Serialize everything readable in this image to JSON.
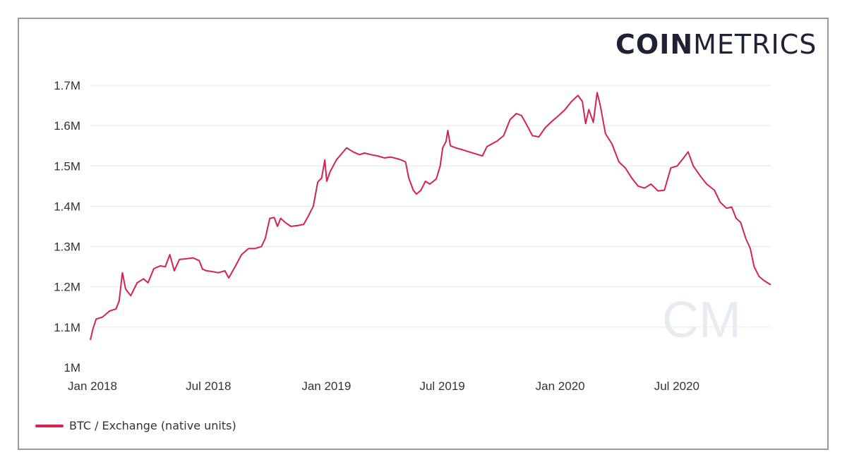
{
  "brand": {
    "bold": "COIN",
    "light": "METRICS",
    "watermark": "CM"
  },
  "colors": {
    "series": "#d6224f",
    "grid": "#e6e6e6",
    "text": "#333333",
    "brand": "#1e2234",
    "watermark": "#e8ebf2"
  },
  "chart_data": {
    "type": "line",
    "title": "",
    "xlabel": "",
    "ylabel": "",
    "ylim": [
      1000000,
      1700000
    ],
    "xlim": [
      "2018-01-01",
      "2020-11-28"
    ],
    "y_ticks": [
      {
        "value": 1000000,
        "label": "1M"
      },
      {
        "value": 1100000,
        "label": "1.1M"
      },
      {
        "value": 1200000,
        "label": "1.2M"
      },
      {
        "value": 1300000,
        "label": "1.3M"
      },
      {
        "value": 1400000,
        "label": "1.4M"
      },
      {
        "value": 1500000,
        "label": "1.5M"
      },
      {
        "value": 1600000,
        "label": "1.6M"
      },
      {
        "value": 1700000,
        "label": "1.7M"
      }
    ],
    "x_ticks": [
      {
        "date": "2018-01-01",
        "label": "Jan 2018"
      },
      {
        "date": "2018-07-01",
        "label": "Jul 2018"
      },
      {
        "date": "2019-01-01",
        "label": "Jan 2019"
      },
      {
        "date": "2019-07-01",
        "label": "Jul 2019"
      },
      {
        "date": "2020-01-01",
        "label": "Jan 2020"
      },
      {
        "date": "2020-07-01",
        "label": "Jul 2020"
      }
    ],
    "grid": true,
    "legend_position": "bottom-left",
    "series": [
      {
        "name": "BTC / Exchange (native units)",
        "points": [
          [
            "2018-01-01",
            1068000
          ],
          [
            "2018-01-05",
            1095000
          ],
          [
            "2018-01-10",
            1120000
          ],
          [
            "2018-01-20",
            1125000
          ],
          [
            "2018-01-31",
            1140000
          ],
          [
            "2018-02-10",
            1145000
          ],
          [
            "2018-02-15",
            1165000
          ],
          [
            "2018-02-20",
            1235000
          ],
          [
            "2018-02-25",
            1195000
          ],
          [
            "2018-03-05",
            1178000
          ],
          [
            "2018-03-15",
            1210000
          ],
          [
            "2018-03-25",
            1220000
          ],
          [
            "2018-04-01",
            1210000
          ],
          [
            "2018-04-10",
            1245000
          ],
          [
            "2018-04-20",
            1252000
          ],
          [
            "2018-04-28",
            1250000
          ],
          [
            "2018-05-05",
            1280000
          ],
          [
            "2018-05-12",
            1240000
          ],
          [
            "2018-05-20",
            1268000
          ],
          [
            "2018-06-01",
            1270000
          ],
          [
            "2018-06-10",
            1272000
          ],
          [
            "2018-06-20",
            1265000
          ],
          [
            "2018-06-25",
            1244000
          ],
          [
            "2018-07-01",
            1240000
          ],
          [
            "2018-07-10",
            1238000
          ],
          [
            "2018-07-20",
            1235000
          ],
          [
            "2018-07-30",
            1240000
          ],
          [
            "2018-08-05",
            1222000
          ],
          [
            "2018-08-15",
            1250000
          ],
          [
            "2018-08-25",
            1280000
          ],
          [
            "2018-09-05",
            1295000
          ],
          [
            "2018-09-15",
            1295000
          ],
          [
            "2018-09-25",
            1300000
          ],
          [
            "2018-10-01",
            1320000
          ],
          [
            "2018-10-08",
            1370000
          ],
          [
            "2018-10-15",
            1372000
          ],
          [
            "2018-10-20",
            1350000
          ],
          [
            "2018-10-25",
            1370000
          ],
          [
            "2018-11-01",
            1360000
          ],
          [
            "2018-11-10",
            1350000
          ],
          [
            "2018-11-20",
            1352000
          ],
          [
            "2018-11-30",
            1355000
          ],
          [
            "2018-12-07",
            1375000
          ],
          [
            "2018-12-15",
            1400000
          ],
          [
            "2018-12-22",
            1460000
          ],
          [
            "2018-12-28",
            1470000
          ],
          [
            "2019-01-02",
            1515000
          ],
          [
            "2019-01-05",
            1462000
          ],
          [
            "2019-01-10",
            1485000
          ],
          [
            "2019-01-20",
            1515000
          ],
          [
            "2019-01-28",
            1530000
          ],
          [
            "2019-02-05",
            1545000
          ],
          [
            "2019-02-15",
            1535000
          ],
          [
            "2019-02-25",
            1528000
          ],
          [
            "2019-03-05",
            1532000
          ],
          [
            "2019-03-15",
            1528000
          ],
          [
            "2019-03-25",
            1525000
          ],
          [
            "2019-04-05",
            1520000
          ],
          [
            "2019-04-15",
            1522000
          ],
          [
            "2019-04-25",
            1518000
          ],
          [
            "2019-05-01",
            1515000
          ],
          [
            "2019-05-08",
            1510000
          ],
          [
            "2019-05-13",
            1470000
          ],
          [
            "2019-05-20",
            1440000
          ],
          [
            "2019-05-25",
            1430000
          ],
          [
            "2019-06-01",
            1440000
          ],
          [
            "2019-06-08",
            1462000
          ],
          [
            "2019-06-15",
            1455000
          ],
          [
            "2019-06-25",
            1468000
          ],
          [
            "2019-07-01",
            1500000
          ],
          [
            "2019-07-05",
            1545000
          ],
          [
            "2019-07-10",
            1560000
          ],
          [
            "2019-07-13",
            1588000
          ],
          [
            "2019-07-17",
            1550000
          ],
          [
            "2019-07-25",
            1545000
          ],
          [
            "2019-08-05",
            1540000
          ],
          [
            "2019-08-15",
            1535000
          ],
          [
            "2019-08-25",
            1530000
          ],
          [
            "2019-09-05",
            1525000
          ],
          [
            "2019-09-12",
            1548000
          ],
          [
            "2019-09-20",
            1555000
          ],
          [
            "2019-09-28",
            1562000
          ],
          [
            "2019-10-08",
            1575000
          ],
          [
            "2019-10-18",
            1615000
          ],
          [
            "2019-10-28",
            1630000
          ],
          [
            "2019-11-05",
            1625000
          ],
          [
            "2019-11-12",
            1605000
          ],
          [
            "2019-11-22",
            1575000
          ],
          [
            "2019-12-02",
            1572000
          ],
          [
            "2019-12-12",
            1595000
          ],
          [
            "2019-12-22",
            1610000
          ],
          [
            "2020-01-02",
            1625000
          ],
          [
            "2020-01-12",
            1640000
          ],
          [
            "2020-01-22",
            1660000
          ],
          [
            "2020-02-01",
            1675000
          ],
          [
            "2020-02-08",
            1660000
          ],
          [
            "2020-02-13",
            1605000
          ],
          [
            "2020-02-18",
            1640000
          ],
          [
            "2020-02-25",
            1608000
          ],
          [
            "2020-03-02",
            1682000
          ],
          [
            "2020-03-07",
            1650000
          ],
          [
            "2020-03-15",
            1580000
          ],
          [
            "2020-03-25",
            1555000
          ],
          [
            "2020-04-05",
            1510000
          ],
          [
            "2020-04-15",
            1495000
          ],
          [
            "2020-04-25",
            1470000
          ],
          [
            "2020-05-05",
            1450000
          ],
          [
            "2020-05-15",
            1445000
          ],
          [
            "2020-05-25",
            1455000
          ],
          [
            "2020-06-05",
            1438000
          ],
          [
            "2020-06-15",
            1440000
          ],
          [
            "2020-06-25",
            1495000
          ],
          [
            "2020-07-05",
            1500000
          ],
          [
            "2020-07-15",
            1520000
          ],
          [
            "2020-07-22",
            1535000
          ],
          [
            "2020-07-30",
            1500000
          ],
          [
            "2020-08-10",
            1475000
          ],
          [
            "2020-08-20",
            1455000
          ],
          [
            "2020-09-01",
            1440000
          ],
          [
            "2020-09-10",
            1410000
          ],
          [
            "2020-09-20",
            1395000
          ],
          [
            "2020-09-28",
            1398000
          ],
          [
            "2020-10-05",
            1370000
          ],
          [
            "2020-10-12",
            1360000
          ],
          [
            "2020-10-20",
            1320000
          ],
          [
            "2020-10-27",
            1295000
          ],
          [
            "2020-11-02",
            1250000
          ],
          [
            "2020-11-10",
            1225000
          ],
          [
            "2020-11-18",
            1215000
          ],
          [
            "2020-11-28",
            1205000
          ]
        ]
      }
    ]
  }
}
